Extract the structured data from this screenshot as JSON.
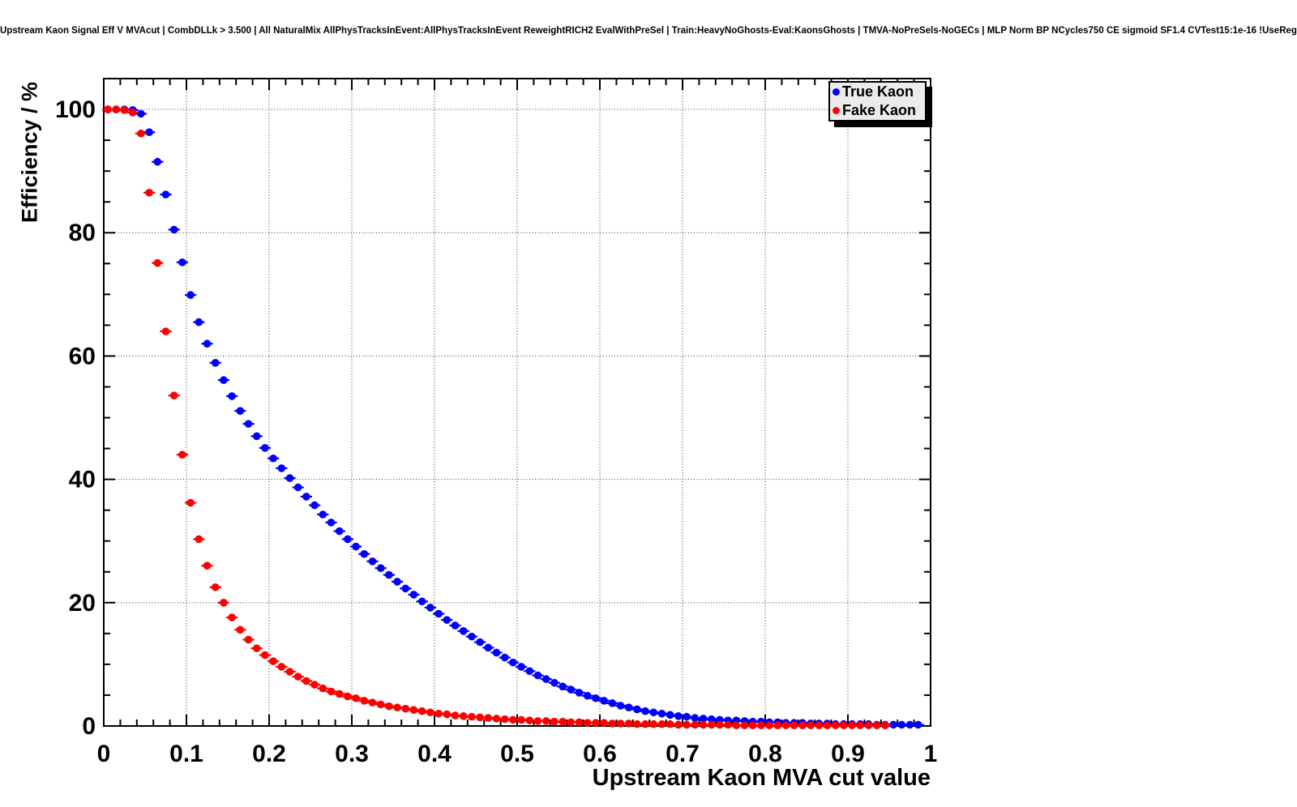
{
  "chart_data": {
    "type": "scatter",
    "title": "Upstream Kaon Signal Eff V MVAcut | CombDLLk > 3.500 | All NaturalMix AllPhysTracksInEvent:AllPhysTracksInEvent ReweightRICH2 EvalWithPreSel | Train:HeavyNoGhosts-Eval:KaonsGhosts | TMVA-NoPreSels-NoGECs | MLP Norm BP NCycles750 CE sigmoid SF1.4 CVTest15:1e-16 !UseReg",
    "xlabel": "Upstream Kaon MVA cut value",
    "ylabel": "Efficiency / %",
    "xlim": [
      0,
      1
    ],
    "ylim": [
      0,
      105
    ],
    "grid": "dotted lines at major ticks, both axes",
    "x_ticks": {
      "values": [
        0,
        0.1,
        0.2,
        0.3,
        0.4,
        0.5,
        0.6,
        0.7,
        0.8,
        0.9,
        1
      ],
      "labels": [
        "0",
        "0.1",
        "0.2",
        "0.3",
        "0.4",
        "0.5",
        "0.6",
        "0.7",
        "0.8",
        "0.9",
        "1"
      ],
      "minor_step": 0.02
    },
    "y_ticks": {
      "values": [
        0,
        20,
        40,
        60,
        80,
        100
      ],
      "labels": [
        "0",
        "20",
        "40",
        "60",
        "80",
        "100"
      ],
      "minor_step": 5
    },
    "legend": {
      "position": "top-right",
      "background": "#ebebeb",
      "shadow": true
    },
    "marker": "filled-circle with horizontal error bars",
    "x_error_halfwidth": 0.005,
    "series": [
      {
        "name": "True Kaon",
        "color": "#0000ff",
        "x_start": 0.005,
        "x_step": 0.01,
        "values": [
          100,
          100,
          100,
          99.9,
          99.3,
          96.3,
          91.5,
          86.2,
          80.5,
          75.2,
          69.9,
          65.5,
          62,
          58.9,
          56.1,
          53.5,
          51.1,
          49,
          47,
          45.1,
          43.4,
          41.8,
          40.2,
          38.7,
          37.2,
          35.8,
          34.3,
          33,
          31.6,
          30.3,
          29.1,
          27.9,
          26.7,
          25.6,
          24.5,
          23.4,
          22.3,
          21.3,
          20.2,
          19.2,
          18.2,
          17.2,
          16.3,
          15.4,
          14.5,
          13.6,
          12.7,
          11.9,
          11.1,
          10.3,
          9.6,
          8.9,
          8.2,
          7.6,
          7,
          6.4,
          5.9,
          5.4,
          4.9,
          4.5,
          4.1,
          3.7,
          3.3,
          3,
          2.7,
          2.4,
          2.2,
          2,
          1.8,
          1.6,
          1.5,
          1.3,
          1.2,
          1.1,
          1,
          0.9,
          0.9,
          0.8,
          0.7,
          0.7,
          0.6,
          0.6,
          0.5,
          0.5,
          0.5,
          0.4,
          0.4,
          0.4,
          0.3,
          0.3,
          0.3,
          0.3,
          0.3,
          0.2,
          0.2,
          0.2,
          0.2,
          0.2,
          0.2
        ]
      },
      {
        "name": "Fake Kaon",
        "color": "#ff0000",
        "x_start": 0.005,
        "x_step": 0.01,
        "values": [
          100,
          100,
          99.9,
          99.5,
          96.1,
          86.5,
          75.1,
          64,
          53.6,
          44,
          36.2,
          30.3,
          26,
          22.5,
          20,
          17.6,
          15.6,
          14,
          12.6,
          11.5,
          10.5,
          9.6,
          8.8,
          8,
          7.3,
          6.7,
          6.1,
          5.6,
          5.2,
          4.8,
          4.5,
          4.1,
          3.8,
          3.5,
          3.2,
          3,
          2.8,
          2.6,
          2.4,
          2.2,
          2,
          1.9,
          1.7,
          1.6,
          1.5,
          1.4,
          1.3,
          1.2,
          1.1,
          1,
          1,
          0.9,
          0.8,
          0.8,
          0.7,
          0.7,
          0.6,
          0.6,
          0.5,
          0.5,
          0.5,
          0.4,
          0.4,
          0.4,
          0.3,
          0.3,
          0.3,
          0.3,
          0.3,
          0.2,
          0.2,
          0.2,
          0.2,
          0.2,
          0.2,
          0.2,
          0.1,
          0.1,
          0.1,
          0.1,
          0.1,
          0.1,
          0.1,
          0.1,
          0.1,
          0.1,
          0.1,
          0.1,
          0.1,
          0.1,
          0.1,
          0.1,
          0.1,
          0.1,
          0.1
        ]
      }
    ]
  }
}
